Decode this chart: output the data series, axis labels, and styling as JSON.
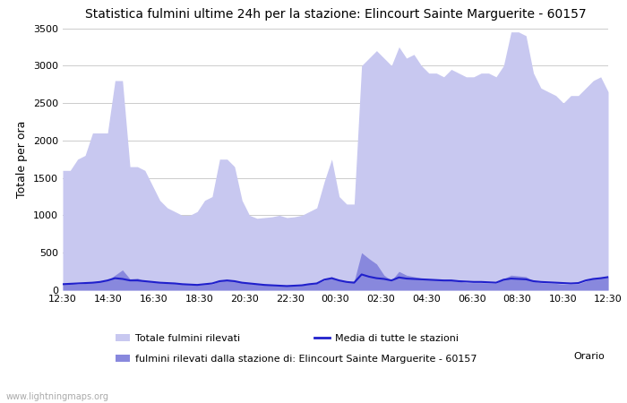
{
  "title": "Statistica fulmini ultime 24h per la stazione: Elincourt Sainte Marguerite - 60157",
  "ylabel": "Totale per ora",
  "xlabel_right": "Orario",
  "xtick_labels": [
    "12:30",
    "14:30",
    "16:30",
    "18:30",
    "20:30",
    "22:30",
    "00:30",
    "02:30",
    "04:30",
    "06:30",
    "08:30",
    "10:30",
    "12:30"
  ],
  "ylim": [
    0,
    3500
  ],
  "yticks": [
    0,
    500,
    1000,
    1500,
    2000,
    2500,
    3000,
    3500
  ],
  "background_color": "#ffffff",
  "plot_bg_color": "#ffffff",
  "grid_color": "#cccccc",
  "watermark": "www.lightningmaps.org",
  "legend_entries": [
    {
      "label": "Totale fulmini rilevati",
      "color": "#c8c8f0",
      "type": "patch"
    },
    {
      "label": "Media di tutte le stazioni",
      "color": "#2020cc",
      "type": "line"
    },
    {
      "label": "fulmini rilevati dalla stazione di: Elincourt Sainte Marguerite - 60157",
      "color": "#8888dd",
      "type": "patch"
    }
  ],
  "total_lightning_color": "#c8c8f0",
  "station_lightning_color": "#8888dd",
  "mean_line_color": "#2020cc",
  "total_lightning_values": [
    1600,
    1600,
    1750,
    1800,
    2100,
    2100,
    2100,
    2800,
    2800,
    1650,
    1650,
    1600,
    1400,
    1200,
    1100,
    1050,
    1000,
    1000,
    1050,
    1200,
    1250,
    1750,
    1750,
    1650,
    1200,
    1000,
    960,
    970,
    980,
    1000,
    970,
    980,
    1000,
    1050,
    1100,
    1450,
    1750,
    1250,
    1150,
    1150,
    3000,
    3100,
    3200,
    3100,
    3000,
    3250,
    3100,
    3150,
    3000,
    2900,
    2900,
    2850,
    2950,
    2900,
    2850,
    2850,
    2900,
    2900,
    2850,
    3000,
    3450,
    3450,
    3400,
    2900,
    2700,
    2650,
    2600,
    2500,
    2600,
    2600,
    2700,
    2800,
    2850,
    2650
  ],
  "station_lightning_values": [
    80,
    90,
    80,
    90,
    110,
    120,
    130,
    200,
    270,
    150,
    160,
    120,
    110,
    100,
    95,
    90,
    80,
    75,
    70,
    75,
    80,
    120,
    130,
    120,
    100,
    90,
    80,
    70,
    65,
    60,
    55,
    60,
    65,
    80,
    90,
    130,
    180,
    130,
    110,
    120,
    500,
    420,
    350,
    200,
    130,
    250,
    200,
    180,
    160,
    150,
    140,
    135,
    130,
    120,
    100,
    100,
    100,
    95,
    90,
    150,
    200,
    190,
    180,
    120,
    100,
    95,
    90,
    80,
    80,
    85,
    120,
    160,
    170,
    190
  ],
  "mean_values": [
    80,
    85,
    90,
    95,
    100,
    110,
    130,
    160,
    150,
    130,
    130,
    120,
    110,
    100,
    95,
    90,
    80,
    75,
    70,
    80,
    90,
    120,
    130,
    120,
    100,
    90,
    80,
    70,
    65,
    60,
    55,
    60,
    65,
    80,
    90,
    140,
    160,
    130,
    110,
    100,
    210,
    180,
    160,
    150,
    130,
    170,
    155,
    150,
    145,
    140,
    135,
    130,
    130,
    120,
    115,
    110,
    110,
    105,
    100,
    140,
    155,
    150,
    145,
    120,
    110,
    105,
    100,
    95,
    90,
    95,
    130,
    150,
    160,
    175
  ]
}
